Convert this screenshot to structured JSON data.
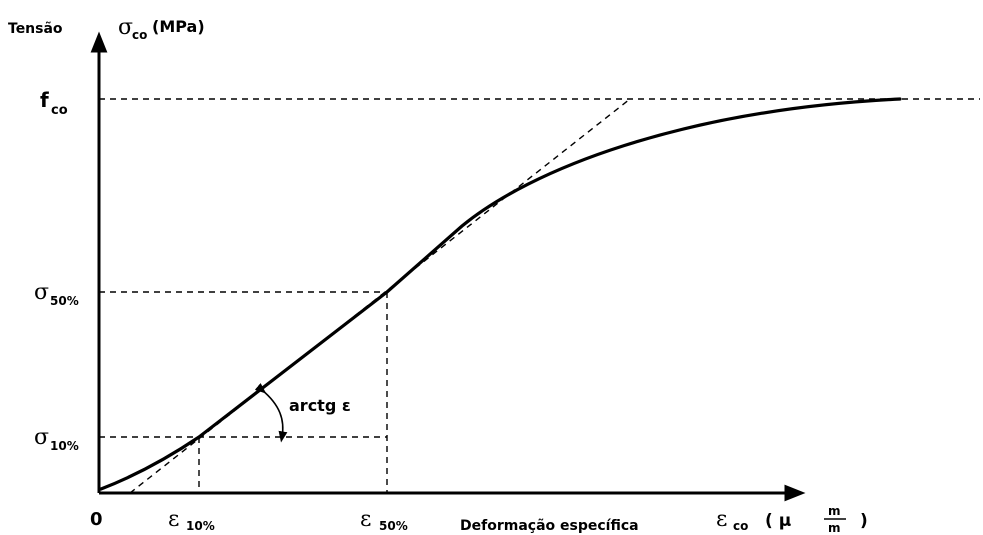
{
  "labels": {
    "y_title_word": "Tensão",
    "y_symbol": "σ",
    "y_sub": "co",
    "y_unit": "(MPa)",
    "fco_main": "f",
    "fco_sub": "co",
    "sigma50_main": "σ",
    "sigma50_sub": "50%",
    "sigma10_main": "σ",
    "sigma10_sub": "10%",
    "origin": "0",
    "eps10_main": "ε",
    "eps10_sub": "10%",
    "eps50_main": "ε",
    "eps50_sub": "50%",
    "x_title_word": "Deformação específica",
    "x_symbol": "ε",
    "x_sub": "co",
    "x_unit_open": "( μ",
    "x_unit_num": "m",
    "x_unit_den": "m",
    "x_unit_close": ")",
    "angle_label": "arctg ε"
  }
}
